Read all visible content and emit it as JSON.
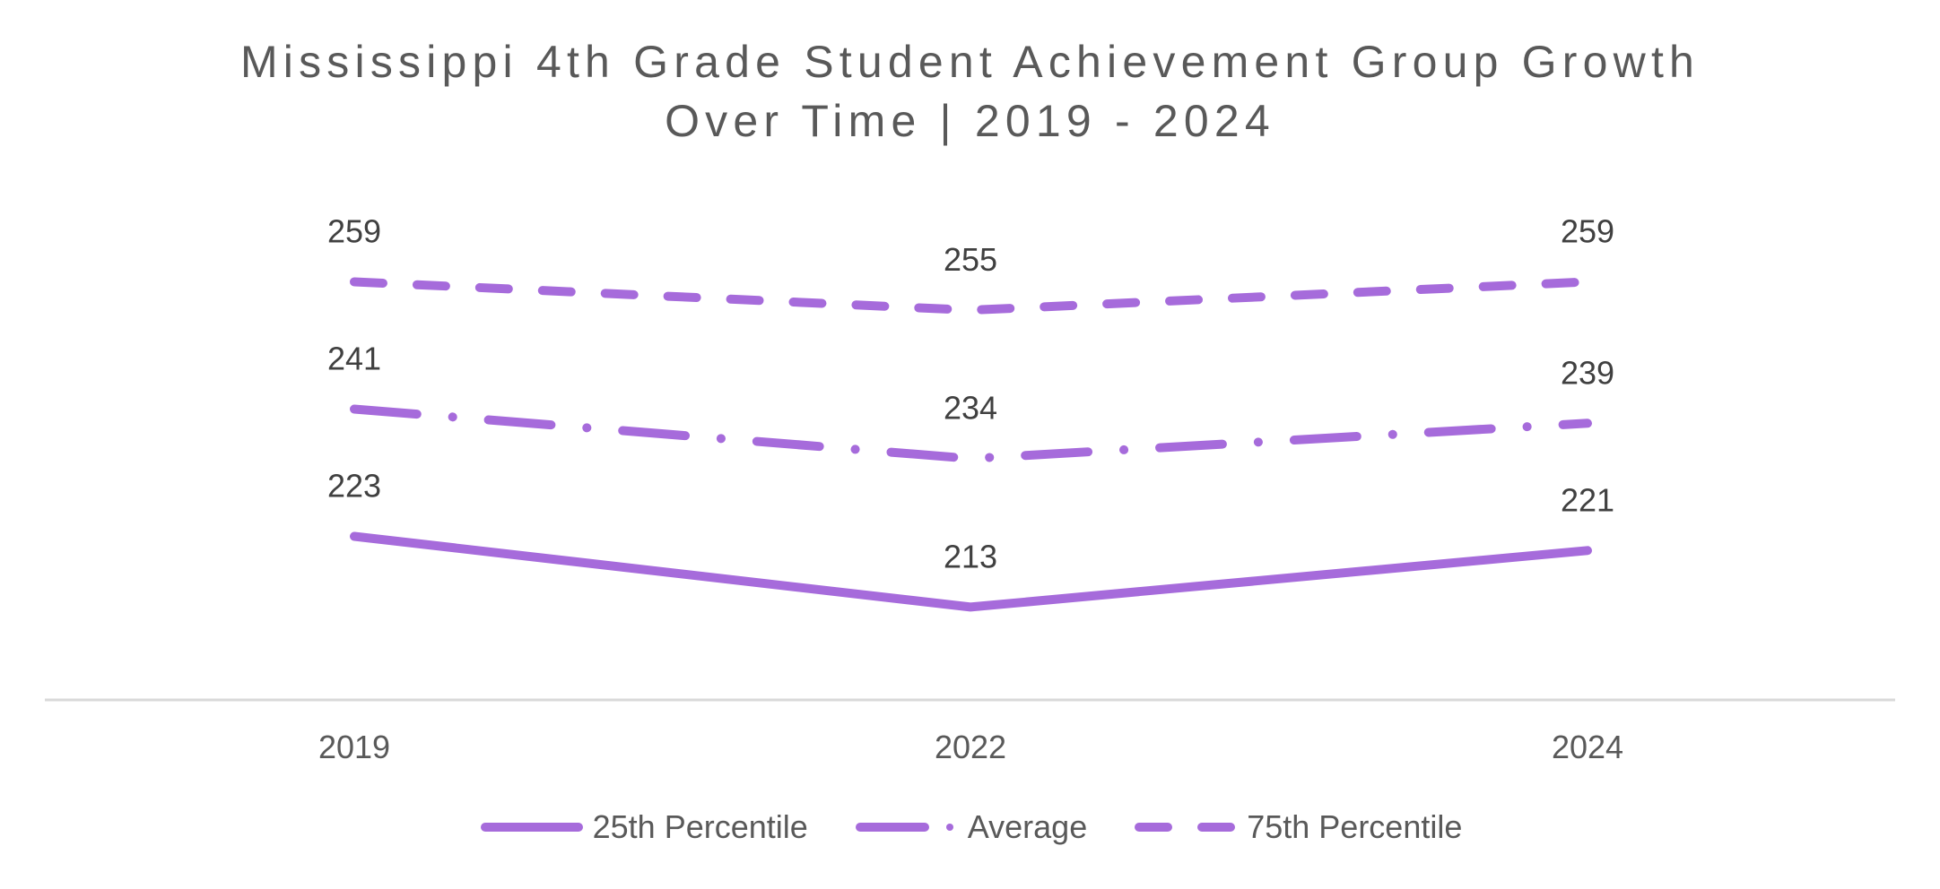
{
  "title": {
    "line1": "Mississippi 4th Grade Student Achievement Group Growth",
    "line2": "Over Time | 2019 - 2024"
  },
  "colors": {
    "series": "#A66BDB",
    "axis": "#D9D9D9",
    "title_text": "#595959",
    "label_text": "#404040"
  },
  "legend": {
    "items": [
      {
        "label": "25th Percentile",
        "style": "solid"
      },
      {
        "label": "Average",
        "style": "long-dash-dot"
      },
      {
        "label": "75th Percentile",
        "style": "dash"
      }
    ]
  },
  "axis": {
    "categories": [
      "2019",
      "2022",
      "2024"
    ]
  },
  "chart_data": {
    "type": "line",
    "title": "Mississippi 4th Grade Student Achievement Group Growth Over Time | 2019 - 2024",
    "xlabel": "",
    "ylabel": "",
    "categories": [
      "2019",
      "2022",
      "2024"
    ],
    "series": [
      {
        "name": "25th Percentile",
        "values": [
          223,
          213,
          221
        ],
        "line_style": "solid"
      },
      {
        "name": "Average",
        "values": [
          241,
          234,
          239
        ],
        "line_style": "long-dash-dot"
      },
      {
        "name": "75th Percentile",
        "values": [
          259,
          255,
          259
        ],
        "line_style": "dash"
      }
    ],
    "data_labels": true,
    "grid": false,
    "y_axis_visible": false,
    "legend_position": "bottom"
  }
}
